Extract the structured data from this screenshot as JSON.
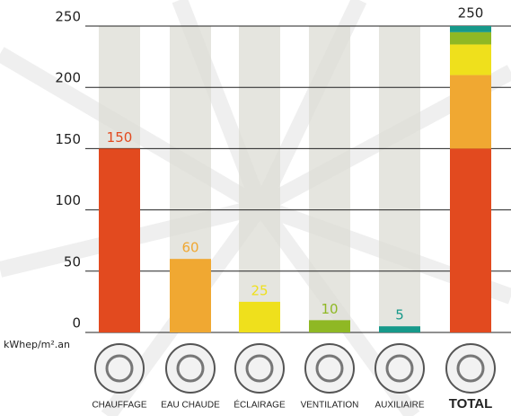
{
  "chart_data": {
    "type": "bar",
    "categories": [
      "CHAUFFAGE",
      "EAU CHAUDE",
      "ÉCLAIRAGE",
      "VENTILATION",
      "AUXILIAIRE"
    ],
    "values": [
      150,
      60,
      25,
      10,
      5
    ],
    "colors": [
      "#e24a1f",
      "#f0a832",
      "#efe01c",
      "#8fb824",
      "#17998a"
    ],
    "total_label": "TOTAL",
    "total_value": 250,
    "y_axis_label": "kWhep/m².an",
    "ylim": [
      0,
      250
    ],
    "yticks": [
      0,
      50,
      100,
      150,
      200,
      250
    ],
    "grid": true
  }
}
